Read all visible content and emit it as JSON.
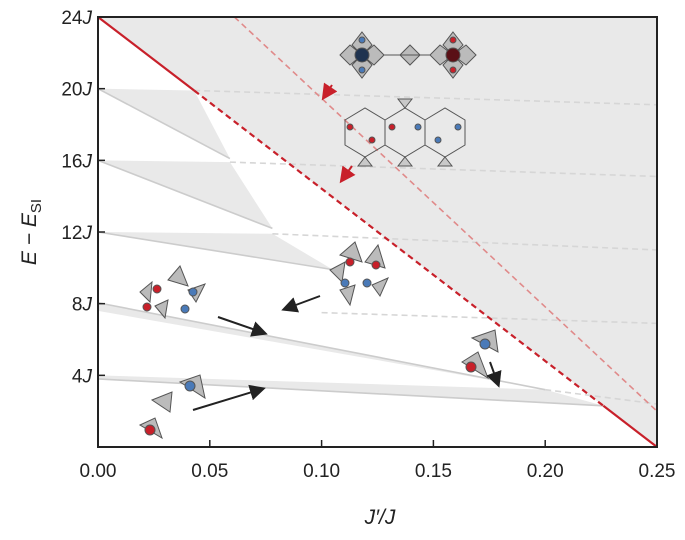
{
  "chart_data": {
    "type": "line",
    "xlabel": "J′/J",
    "ylabel": {
      "text": "E − E",
      "subscript": "SI"
    },
    "xlim": [
      0,
      0.25
    ],
    "ylim": [
      0,
      24
    ],
    "xticks": [
      {
        "value": 0,
        "label": "0.00"
      },
      0.05,
      {
        "value": 0.1,
        "label": "0.10"
      },
      0.15,
      {
        "value": 0.2,
        "label": "0.20"
      },
      0.25
    ],
    "yticks": [
      {
        "value": 4,
        "label": "4J"
      },
      {
        "value": 8,
        "label": "8J"
      },
      {
        "value": 12,
        "label": "12J"
      },
      {
        "value": 16,
        "label": "16J"
      },
      {
        "value": 20,
        "label": "20J"
      },
      {
        "value": 24,
        "label": "24J"
      }
    ],
    "regions": [
      {
        "color": "#e9e9e9",
        "x": [
          0,
          0.25,
          0.25
        ],
        "y": [
          24,
          24,
          0
        ]
      },
      {
        "color": "#e9e9e9",
        "x": [
          0,
          0.043,
          0.059
        ],
        "y": [
          20,
          19.9,
          16.1
        ]
      },
      {
        "color": "#e9e9e9",
        "x": [
          0,
          0.059,
          0.078
        ],
        "y": [
          16,
          15.9,
          12.2
        ]
      },
      {
        "color": "#e9e9e9",
        "x": [
          0,
          0.078,
          0.105
        ],
        "y": [
          12,
          11.9,
          9.9
        ]
      },
      {
        "color": "#e9e9e9",
        "x": [
          0,
          0.2,
          0
        ],
        "y": [
          8.05,
          3.2,
          7.6
        ]
      },
      {
        "color": "#e9e9e9",
        "x": [
          0,
          0.2,
          0.226,
          0
        ],
        "y": [
          4,
          3.2,
          2.3,
          3.8
        ]
      }
    ],
    "lines": [
      {
        "color": "#cccccc",
        "style": "solid",
        "x": [
          0,
          0.059
        ],
        "y": [
          20,
          16.1
        ]
      },
      {
        "color": "#cccccc",
        "style": "solid",
        "x": [
          0,
          0.078
        ],
        "y": [
          16,
          12.2
        ]
      },
      {
        "color": "#cccccc",
        "style": "solid",
        "x": [
          0,
          0.105
        ],
        "y": [
          12,
          9.9
        ]
      },
      {
        "color": "#cccccc",
        "style": "solid",
        "x": [
          0,
          0.2
        ],
        "y": [
          8.05,
          3.2
        ]
      },
      {
        "color": "#cccccc",
        "style": "solid",
        "x": [
          0,
          0.226
        ],
        "y": [
          3.8,
          2.3
        ]
      },
      {
        "color": "#d6d6d6",
        "style": "dashed",
        "x": [
          0.043,
          0.25
        ],
        "y": [
          19.9,
          19.1
        ]
      },
      {
        "color": "#d6d6d6",
        "style": "dashed",
        "x": [
          0.059,
          0.25
        ],
        "y": [
          15.9,
          15.1
        ]
      },
      {
        "color": "#d6d6d6",
        "style": "dashed",
        "x": [
          0.078,
          0.25
        ],
        "y": [
          11.9,
          11.0
        ]
      },
      {
        "color": "#d6d6d6",
        "style": "dashed",
        "x": [
          0.1,
          0.25
        ],
        "y": [
          7.5,
          6.9
        ]
      },
      {
        "color": "#d6d6d6",
        "style": "dashed",
        "x": [
          0.2,
          0.25
        ],
        "y": [
          3.2,
          2.4
        ]
      },
      {
        "color": "#e08a8a",
        "style": "dashed",
        "x": [
          0.061,
          0.25
        ],
        "y": [
          24,
          2.0
        ]
      },
      {
        "color": "#c8202a",
        "style": "solid",
        "x": [
          0,
          0.043
        ],
        "y": [
          24,
          19.9
        ]
      },
      {
        "color": "#c8202a",
        "style": "dashed",
        "x": [
          0.043,
          0.226
        ],
        "y": [
          19.9,
          2.3
        ]
      },
      {
        "color": "#c8202a",
        "style": "solid",
        "x": [
          0.226,
          0.25
        ],
        "y": [
          2.3,
          0
        ]
      }
    ]
  }
}
